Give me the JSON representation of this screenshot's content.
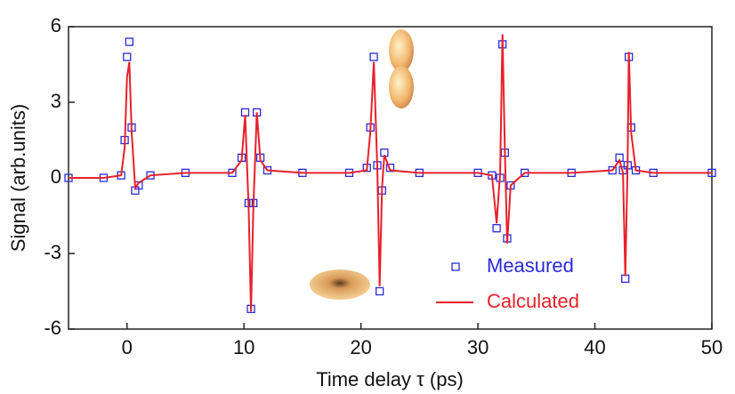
{
  "chart_data": {
    "type": "line",
    "xlabel": "Time delay τ (ps)",
    "ylabel": "Signal (arb.units)",
    "x": [
      -5,
      -2,
      -0.5,
      -0.2,
      0,
      0.2,
      0.4,
      0.7,
      1,
      2,
      5,
      9,
      9.8,
      10.1,
      10.4,
      10.6,
      10.8,
      11.1,
      11.4,
      12,
      15,
      19,
      20.5,
      20.8,
      21.1,
      21.4,
      21.6,
      21.8,
      22,
      22.5,
      25,
      30,
      31.2,
      31.6,
      31.9,
      32.1,
      32.3,
      32.5,
      32.8,
      34,
      38,
      41.5,
      42.1,
      42.4,
      42.6,
      42.8,
      42.9,
      43.1,
      43.5,
      45,
      50
    ],
    "series": [
      {
        "name": "Measured",
        "color": "#2a2ad8",
        "marker": "square",
        "values": [
          0,
          0,
          0.1,
          1.5,
          4.8,
          5.4,
          2.0,
          -0.5,
          -0.3,
          0.1,
          0.2,
          0.2,
          0.8,
          2.6,
          -1.0,
          -5.2,
          -1.0,
          2.6,
          0.8,
          0.3,
          0.2,
          0.2,
          0.4,
          2.0,
          4.8,
          0.5,
          -4.5,
          -0.5,
          1.0,
          0.4,
          0.2,
          0.2,
          0.1,
          -2.0,
          0,
          5.3,
          1.0,
          -2.4,
          -0.3,
          0.2,
          0.2,
          0.3,
          0.8,
          0.3,
          -4.0,
          0.5,
          4.8,
          2.0,
          0.3,
          0.2,
          0.2
        ]
      },
      {
        "name": "Calculated",
        "color": "#e8202a",
        "marker": "line",
        "values": [
          0,
          0,
          0.1,
          1.2,
          4.0,
          4.6,
          1.8,
          -0.4,
          -0.2,
          0.1,
          0.2,
          0.2,
          0.7,
          2.5,
          -1.2,
          -5.3,
          -1.2,
          2.6,
          0.7,
          0.3,
          0.2,
          0.2,
          0.3,
          1.8,
          4.6,
          0.4,
          -4.3,
          -0.4,
          0.9,
          0.3,
          0.2,
          0.2,
          0.1,
          -1.8,
          0.2,
          5.7,
          1.2,
          -2.6,
          -0.3,
          0.2,
          0.2,
          0.3,
          0.7,
          0.2,
          -3.9,
          0.6,
          5.0,
          1.8,
          0.3,
          0.2,
          0.2
        ]
      }
    ],
    "xlim": [
      -5,
      50
    ],
    "xticks": [
      0,
      10,
      20,
      30,
      40,
      50
    ],
    "ylim": [
      -6,
      6
    ],
    "yticks": [
      -6,
      -3,
      0,
      3,
      6
    ],
    "legend": "lower right",
    "grid": false
  }
}
